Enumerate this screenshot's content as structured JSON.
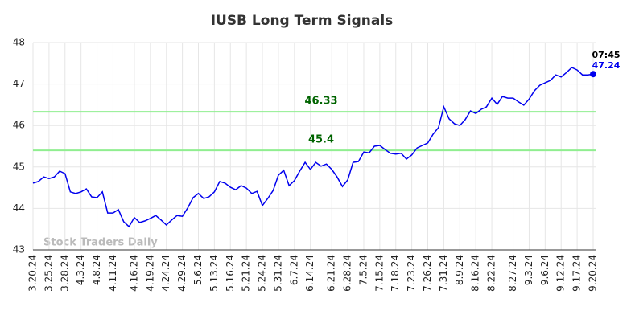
{
  "chart_data": {
    "type": "line",
    "title": "IUSB Long Term Signals",
    "categories": [
      "3.20.24",
      null,
      null,
      "3.25.24",
      null,
      null,
      "3.28.24",
      null,
      null,
      "4.3.24",
      null,
      null,
      "4.8.24",
      null,
      null,
      "4.11.24",
      null,
      null,
      null,
      "4.16.24",
      null,
      null,
      "4.19.24",
      null,
      null,
      "4.24.24",
      null,
      null,
      "4.29.24",
      null,
      null,
      "5.6.24",
      null,
      null,
      "5.13.24",
      null,
      null,
      "5.16.24",
      null,
      null,
      "5.21.24",
      null,
      null,
      "5.24.24",
      null,
      null,
      "5.31.24",
      null,
      null,
      "6.7.24",
      null,
      null,
      "6.14.24",
      null,
      null,
      null,
      "6.21.24",
      null,
      null,
      "6.28.24",
      null,
      null,
      "7.5.24",
      null,
      null,
      "7.15.24",
      null,
      null,
      "7.18.24",
      null,
      null,
      "7.23.24",
      null,
      null,
      "7.26.24",
      null,
      null,
      "7.31.24",
      null,
      null,
      "8.9.24",
      null,
      null,
      "8.16.24",
      null,
      null,
      "8.22.24",
      null,
      null,
      null,
      "8.27.24",
      null,
      null,
      "9.3.24",
      null,
      null,
      "9.6.24",
      null,
      null,
      "9.12.24",
      null,
      null,
      "9.17.24",
      null,
      null,
      "9.20.24"
    ],
    "values": [
      44.61,
      44.65,
      44.76,
      44.72,
      44.76,
      44.9,
      44.84,
      44.4,
      44.36,
      44.4,
      44.47,
      44.28,
      44.26,
      44.4,
      43.89,
      43.89,
      43.97,
      43.68,
      43.56,
      43.78,
      43.66,
      43.7,
      43.76,
      43.83,
      43.72,
      43.6,
      43.72,
      43.83,
      43.81,
      44.01,
      44.26,
      44.36,
      44.24,
      44.28,
      44.4,
      44.65,
      44.61,
      44.51,
      44.45,
      44.55,
      44.49,
      44.36,
      44.41,
      44.07,
      44.24,
      44.43,
      44.8,
      44.92,
      44.55,
      44.67,
      44.9,
      45.11,
      44.94,
      45.11,
      45.02,
      45.07,
      44.94,
      44.76,
      44.53,
      44.69,
      45.11,
      45.13,
      45.36,
      45.34,
      45.5,
      45.52,
      45.42,
      45.33,
      45.31,
      45.33,
      45.19,
      45.29,
      45.46,
      45.52,
      45.58,
      45.79,
      45.95,
      46.45,
      46.16,
      46.04,
      46.0,
      46.14,
      46.35,
      46.29,
      46.39,
      46.45,
      46.66,
      46.51,
      46.7,
      46.66,
      46.66,
      46.57,
      46.49,
      46.64,
      46.84,
      46.97,
      47.03,
      47.09,
      47.22,
      47.17,
      47.28,
      47.4,
      47.34,
      47.22,
      47.22,
      47.24
    ],
    "color": "#0000ee",
    "hlines": [
      {
        "value": 46.33,
        "color": "#90ee90",
        "label_color": "#006400"
      },
      {
        "value": 45.4,
        "color": "#90ee90",
        "label_color": "#006400"
      }
    ],
    "annotation": "07:45",
    "watermark": "Stock Traders Daily",
    "ylim": [
      43,
      48
    ],
    "yticks": [
      43,
      44,
      45,
      46,
      47,
      48
    ],
    "grid": true
  }
}
